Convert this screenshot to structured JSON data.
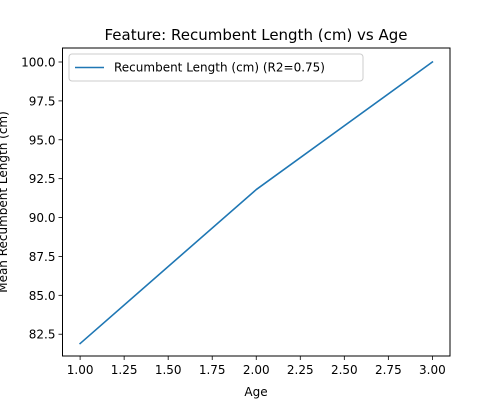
{
  "chart_data": {
    "type": "line",
    "title": "Feature: Recumbent Length (cm) vs Age",
    "xlabel": "Age",
    "ylabel": "Mean Recumbent Length (cm)",
    "xlim": [
      0.9,
      3.1
    ],
    "ylim": [
      81.1,
      100.9
    ],
    "xticks": [
      "1.00",
      "1.25",
      "1.50",
      "1.75",
      "2.00",
      "2.25",
      "2.50",
      "2.75",
      "3.00"
    ],
    "yticks": [
      "82.5",
      "85.0",
      "87.5",
      "90.0",
      "92.5",
      "95.0",
      "97.5",
      "100.0"
    ],
    "grid": false,
    "legend_position": "upper-left",
    "series": [
      {
        "name": "Recumbent Length (cm) (R2=0.75)",
        "color": "#1f77b4",
        "x": [
          1,
          2,
          3
        ],
        "y": [
          81.9,
          91.8,
          100.0
        ]
      }
    ]
  }
}
